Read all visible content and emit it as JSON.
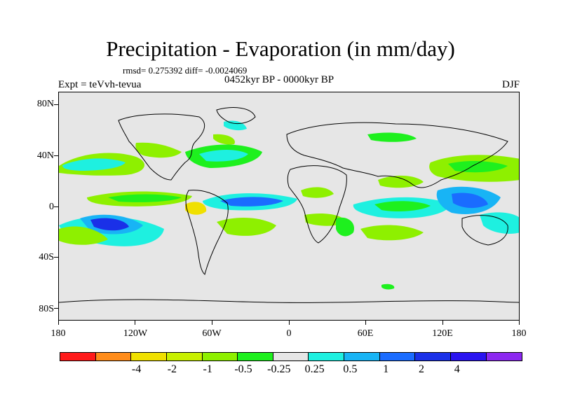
{
  "title": "Precipitation - Evaporation (in mm/day)",
  "stats": "rmsd= 0.275392 diff= -0.0024069",
  "period": "0452kyr BP - 0000kyr BP",
  "experiment": "Expt = teVvh-tevua",
  "season": "DJF",
  "map": {
    "projection": "cylindrical equidistant",
    "lon_range": [
      -180,
      180
    ],
    "lat_range": [
      -90,
      90
    ],
    "background_color": "#e6e6e6",
    "lat_labels": [
      "80N",
      "40N",
      "0",
      "40S",
      "80S"
    ],
    "lon_labels": [
      "180",
      "120W",
      "60W",
      "0",
      "60E",
      "120E",
      "180"
    ]
  },
  "colorbar": {
    "colors": [
      "#ff1a1a",
      "#ff8c1a",
      "#f0e000",
      "#c8f000",
      "#8ef000",
      "#1ef01e",
      "#e6e6e6",
      "#1ef0e0",
      "#18b4f5",
      "#1a6cff",
      "#1a30e8",
      "#2a14f0",
      "#8c28f0"
    ],
    "labels": [
      "-4",
      "-2",
      "-1",
      "-0.5",
      "-0.25",
      "0.25",
      "0.5",
      "1",
      "2",
      "4"
    ]
  }
}
